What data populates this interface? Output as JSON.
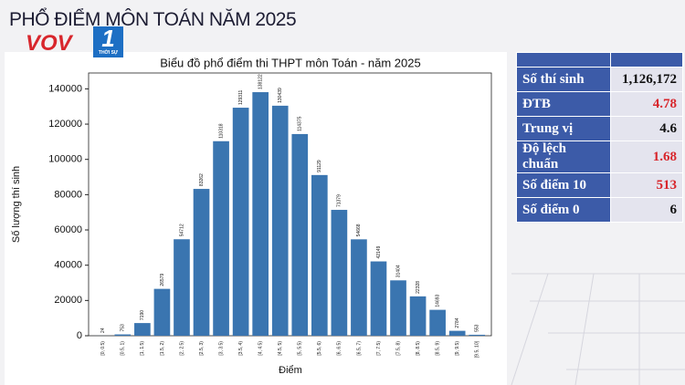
{
  "header": {
    "title": "PHỔ ĐIỂM MÔN TOÁN NĂM 2025",
    "logo": "VOV",
    "channel": "1",
    "channel_name": "THỜI SỰ"
  },
  "chart_data": {
    "type": "bar",
    "title": "Biểu đồ phổ điểm thi THPT môn Toán - năm 2025",
    "x_label": "Điểm",
    "y_label": "Số lượng thí sinh",
    "categories": [
      "[0, 0.5)",
      "[0.5, 1)",
      "[1, 1.5)",
      "[1.5, 2)",
      "[2, 2.5)",
      "[2.5, 3)",
      "[3, 3.5)",
      "[3.5, 4)",
      "[4, 4.5)",
      "[4.5, 5)",
      "[5, 5.5)",
      "[5.5, 6)",
      "[6, 6.5)",
      "[6.5, 7)",
      "[7, 7.5)",
      "[7.5, 8)",
      "[8, 8.5)",
      "[8.5, 9)",
      "[9, 9.5)",
      "[9.5, 10]"
    ],
    "values": [
      24,
      753,
      7190,
      26579,
      54712,
      83262,
      110318,
      129311,
      138122,
      130439,
      114375,
      91129,
      71379,
      54668,
      42149,
      31404,
      22328,
      14693,
      2784,
      553
    ],
    "color": "#3a75b0",
    "ylim": [
      0,
      149000
    ],
    "yticks": [
      0,
      20000,
      40000,
      60000,
      80000,
      100000,
      120000,
      140000
    ],
    "grid": false
  },
  "table": {
    "rows": [
      [
        "Số thí sinh",
        "1,126,172"
      ],
      [
        "ĐTB",
        "4.78"
      ],
      [
        "Trung vị",
        "4.6"
      ],
      [
        "Độ lệch chuẩn",
        "1.68"
      ],
      [
        "Số điểm 10",
        "513"
      ],
      [
        "Số điểm 0",
        "6"
      ]
    ]
  }
}
